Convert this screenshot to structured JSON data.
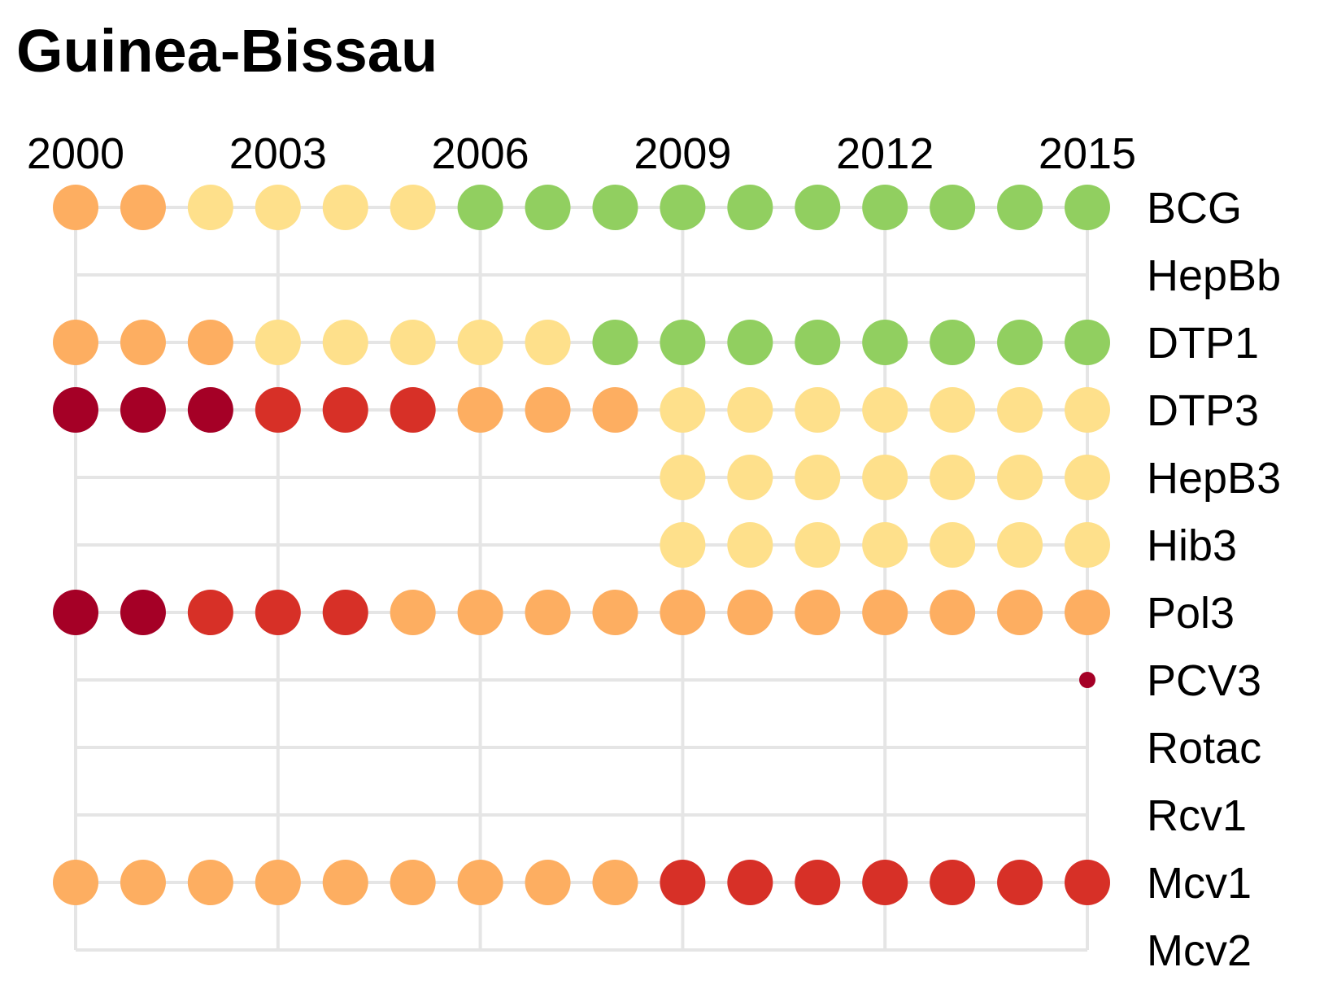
{
  "chart_data": {
    "type": "scatter",
    "title": "Guinea-Bissau",
    "xlabel": "",
    "ylabel": "",
    "x_ticks": [
      "2000",
      "2003",
      "2006",
      "2009",
      "2012",
      "2015"
    ],
    "years": [
      2000,
      2001,
      2002,
      2003,
      2004,
      2005,
      2006,
      2007,
      2008,
      2009,
      2010,
      2011,
      2012,
      2013,
      2014,
      2015
    ],
    "xlim": [
      2000,
      2015
    ],
    "grid": true,
    "legend": "none",
    "colors": {
      "darkred": "#a50026",
      "red": "#d73027",
      "orange": "#fdae61",
      "yellow": "#fee08b",
      "green": "#91cf60"
    },
    "vaccines": [
      {
        "name": "BCG",
        "values": [
          "orange",
          "orange",
          "yellow",
          "yellow",
          "yellow",
          "yellow",
          "green",
          "green",
          "green",
          "green",
          "green",
          "green",
          "green",
          "green",
          "green",
          "green"
        ]
      },
      {
        "name": "HepBb",
        "values": [
          null,
          null,
          null,
          null,
          null,
          null,
          null,
          null,
          null,
          null,
          null,
          null,
          null,
          null,
          null,
          null
        ]
      },
      {
        "name": "DTP1",
        "values": [
          "orange",
          "orange",
          "orange",
          "yellow",
          "yellow",
          "yellow",
          "yellow",
          "yellow",
          "green",
          "green",
          "green",
          "green",
          "green",
          "green",
          "green",
          "green"
        ]
      },
      {
        "name": "DTP3",
        "values": [
          "darkred",
          "darkred",
          "darkred",
          "red",
          "red",
          "red",
          "orange",
          "orange",
          "orange",
          "yellow",
          "yellow",
          "yellow",
          "yellow",
          "yellow",
          "yellow",
          "yellow"
        ]
      },
      {
        "name": "HepB3",
        "values": [
          null,
          null,
          null,
          null,
          null,
          null,
          null,
          null,
          null,
          "yellow",
          "yellow",
          "yellow",
          "yellow",
          "yellow",
          "yellow",
          "yellow"
        ]
      },
      {
        "name": "Hib3",
        "values": [
          null,
          null,
          null,
          null,
          null,
          null,
          null,
          null,
          null,
          "yellow",
          "yellow",
          "yellow",
          "yellow",
          "yellow",
          "yellow",
          "yellow"
        ]
      },
      {
        "name": "Pol3",
        "values": [
          "darkred",
          "darkred",
          "red",
          "red",
          "red",
          "orange",
          "orange",
          "orange",
          "orange",
          "orange",
          "orange",
          "orange",
          "orange",
          "orange",
          "orange",
          "orange"
        ]
      },
      {
        "name": "PCV3",
        "values": [
          null,
          null,
          null,
          null,
          null,
          null,
          null,
          null,
          null,
          null,
          null,
          null,
          null,
          null,
          null,
          "darkred-small"
        ]
      },
      {
        "name": "Rotac",
        "values": [
          null,
          null,
          null,
          null,
          null,
          null,
          null,
          null,
          null,
          null,
          null,
          null,
          null,
          null,
          null,
          null
        ]
      },
      {
        "name": "Rcv1",
        "values": [
          null,
          null,
          null,
          null,
          null,
          null,
          null,
          null,
          null,
          null,
          null,
          null,
          null,
          null,
          null,
          null
        ]
      },
      {
        "name": "Mcv1",
        "values": [
          "orange",
          "orange",
          "orange",
          "orange",
          "orange",
          "orange",
          "orange",
          "orange",
          "orange",
          "red",
          "red",
          "red",
          "red",
          "red",
          "red",
          "red"
        ]
      },
      {
        "name": "Mcv2",
        "values": [
          null,
          null,
          null,
          null,
          null,
          null,
          null,
          null,
          null,
          null,
          null,
          null,
          null,
          null,
          null,
          null
        ]
      }
    ]
  }
}
